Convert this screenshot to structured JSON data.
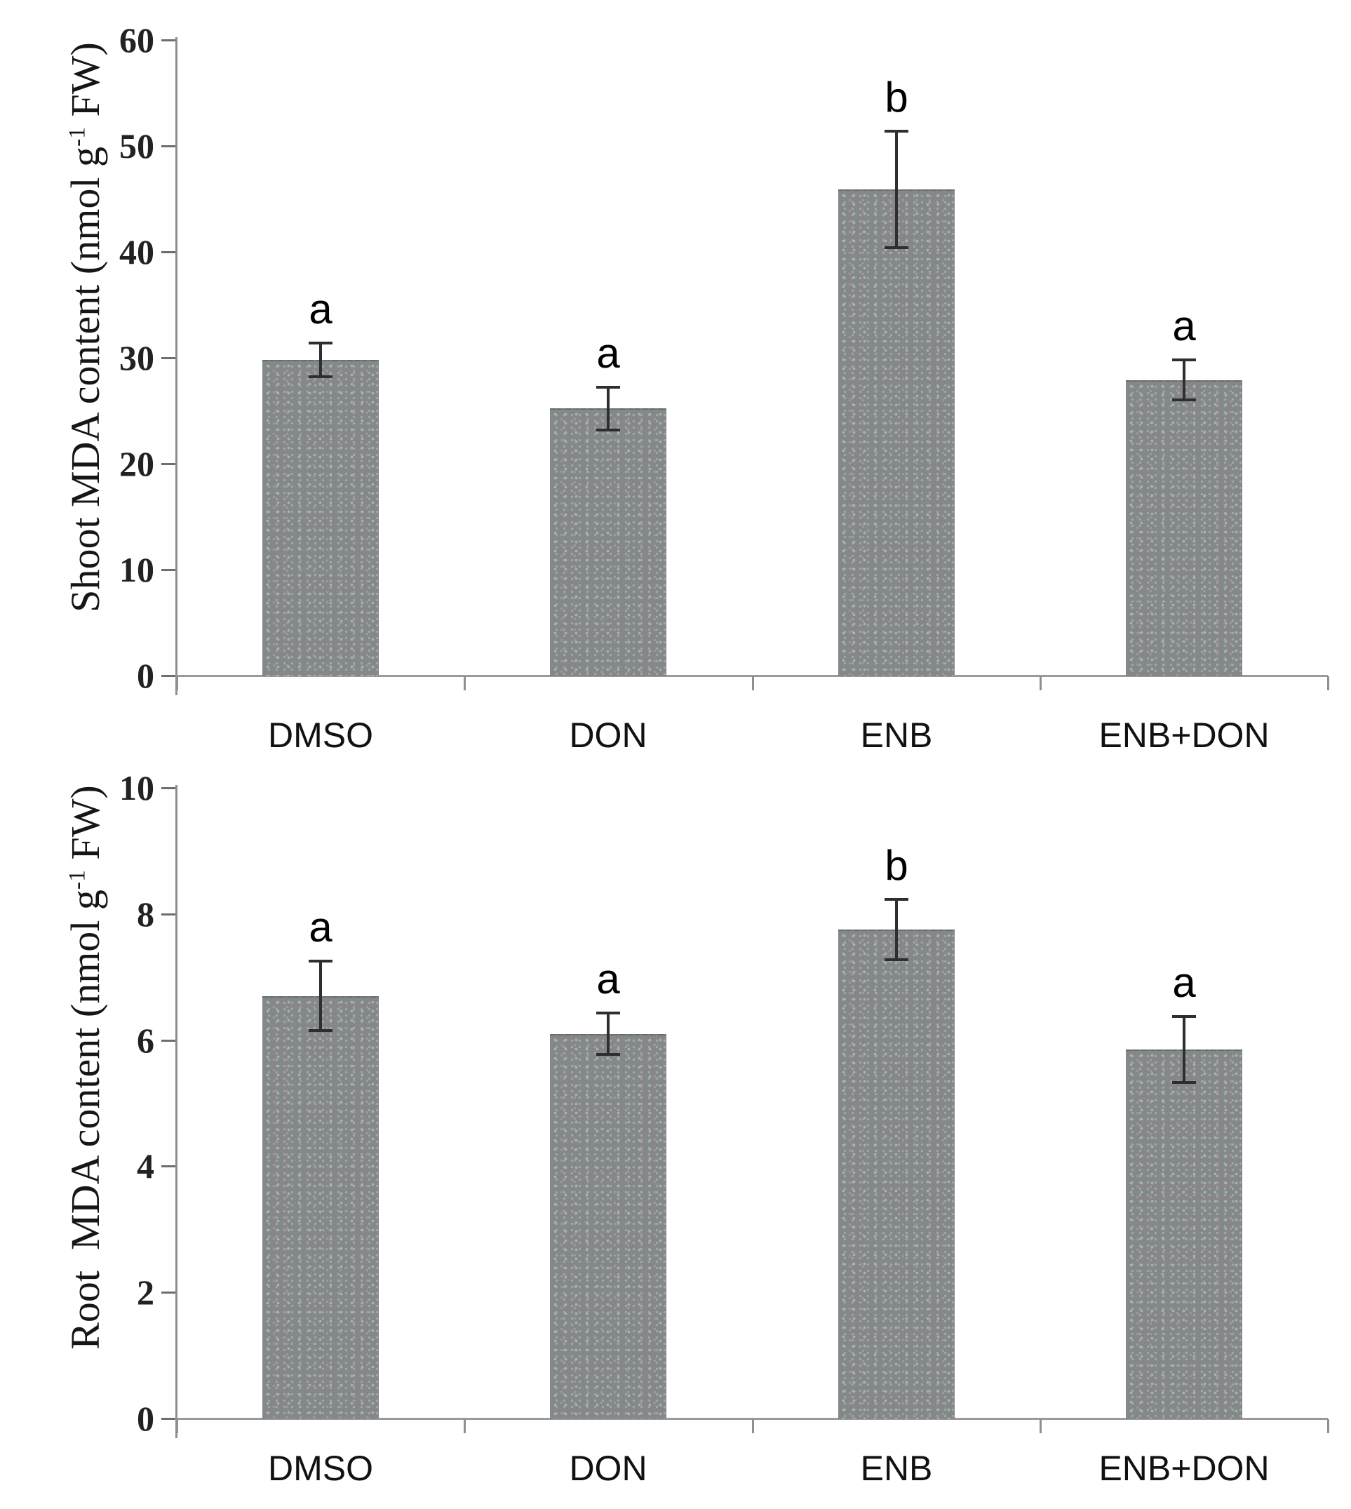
{
  "figure": {
    "description": "Two-panel bar chart of MDA content in shoot and root under DMSO, DON, ENB and ENB+DON treatments, with SD error bars and significance letters",
    "background_color": "#ffffff",
    "bar_fill_color": "#86878b",
    "bar_dot_color": "#9ec4ac",
    "axis_color": "#8f8f8f",
    "error_bar_color": "#2e2e2e",
    "text_color": "#161616"
  },
  "chart_data": [
    {
      "type": "bar",
      "panel": "top",
      "title": "",
      "ylabel_full": "Shoot MDA content (nmol g-1 FW)",
      "ylabel_pre": "Shoot MDA content (nmol g",
      "ylabel_sup": "-1",
      "ylabel_post": " FW)",
      "xlabel": "",
      "categories": [
        "DMSO",
        "DON",
        "ENB",
        "ENB+DON"
      ],
      "values": [
        29.8,
        25.2,
        45.9,
        27.9
      ],
      "errors": [
        1.6,
        2.0,
        5.5,
        1.9
      ],
      "sig_letters": [
        "a",
        "a",
        "b",
        "a"
      ],
      "ylim": [
        0,
        60
      ],
      "yticks": [
        0,
        10,
        20,
        30,
        40,
        50,
        60
      ],
      "grid": false,
      "legend": "none"
    },
    {
      "type": "bar",
      "panel": "bottom",
      "title": "",
      "ylabel_full": "Root  MDA content (nmol g-1 FW)",
      "ylabel_pre": "Root  MDA content (nmol g",
      "ylabel_sup": "-1",
      "ylabel_post": " FW)",
      "xlabel": "",
      "categories": [
        "DMSO",
        "DON",
        "ENB",
        "ENB+DON"
      ],
      "values": [
        6.7,
        6.1,
        7.75,
        5.85
      ],
      "errors": [
        0.55,
        0.33,
        0.48,
        0.52
      ],
      "sig_letters": [
        "a",
        "a",
        "b",
        "a"
      ],
      "ylim": [
        0,
        10
      ],
      "yticks": [
        0,
        2,
        4,
        6,
        8,
        10
      ],
      "grid": false,
      "legend": "none"
    }
  ]
}
